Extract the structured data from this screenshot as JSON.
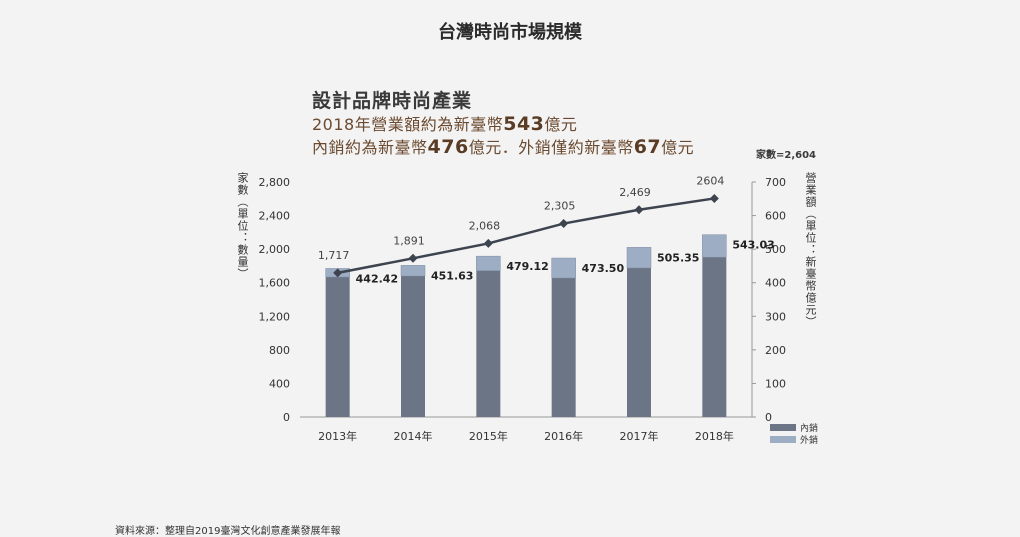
{
  "page": {
    "title": "台灣時尚市場規模",
    "source": "資料來源：整理自2019臺灣文化創意產業發展年報"
  },
  "headline": {
    "title": "設計品牌時尚產業",
    "line1_prefix": "2018年營業額約為新臺幣",
    "line1_value": "543",
    "line1_suffix": "億元",
    "line2_prefix": "內銷約為新臺幣",
    "line2_value1": "476",
    "line2_mid": "億元．外銷僅約新臺幣",
    "line2_value2": "67",
    "line2_suffix": "億元"
  },
  "count_note": "家數=2,604",
  "chart_data": {
    "type": "bar",
    "categories": [
      "2013年",
      "2014年",
      "2015年",
      "2016年",
      "2017年",
      "2018年"
    ],
    "series": [
      {
        "name": "內銷",
        "axis": "right",
        "stacked": true,
        "values": [
          417,
          420,
          436,
          414,
          444,
          476
        ]
      },
      {
        "name": "外銷",
        "axis": "right",
        "stacked": true,
        "values": [
          25.42,
          31.63,
          43.12,
          59.5,
          61.35,
          67.03
        ]
      },
      {
        "name": "家數",
        "axis": "left",
        "type": "line",
        "values": [
          1717,
          1891,
          2068,
          2305,
          2469,
          2604
        ]
      }
    ],
    "bar_total_labels": [
      "442.42",
      "451.63",
      "479.12",
      "473.50",
      "505.35",
      "543.03"
    ],
    "line_labels": [
      "1,717",
      "1,891",
      "2,068",
      "2,305",
      "2,469",
      "2604"
    ],
    "ylabel_left": "家數（單位：數量）",
    "ylabel_right": "營業額（單位：新臺幣億元）",
    "ylim_left": [
      0,
      2800
    ],
    "ylim_right": [
      0,
      700
    ],
    "yticks_left": [
      "0",
      "400",
      "800",
      "1,200",
      "1,600",
      "2,000",
      "2,400",
      "2,800"
    ],
    "yticks_right": [
      "0",
      "100",
      "200",
      "300",
      "400",
      "500",
      "600",
      "700"
    ],
    "legend_position": "bottom-right",
    "colors": {
      "domestic": "#6b7585",
      "export": "#9dadc4",
      "line": "#3d4450"
    }
  }
}
